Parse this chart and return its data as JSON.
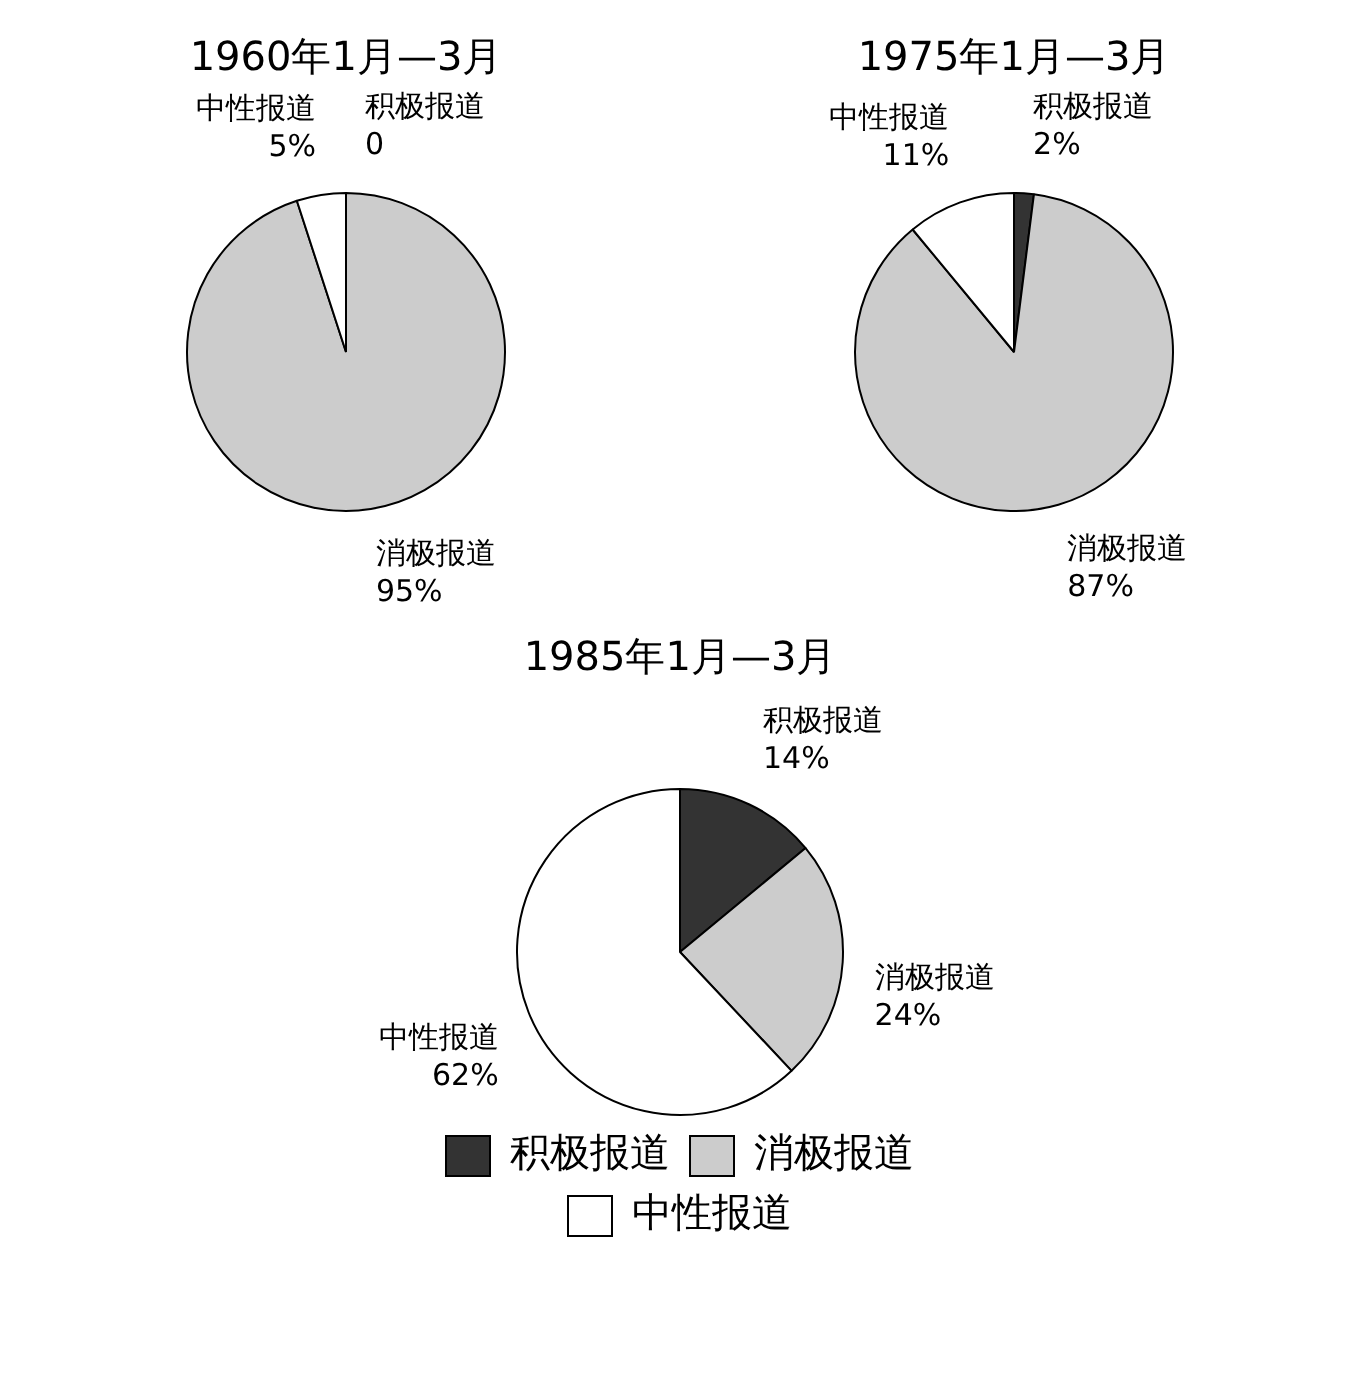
{
  "chart_data": [
    {
      "type": "pie",
      "title": "1960年1月—3月",
      "categories": [
        "积极报道",
        "消极报道",
        "中性报道"
      ],
      "values": [
        0,
        95,
        5
      ],
      "colors": [
        "#333333",
        "#cccccc",
        "#ffffff"
      ],
      "value_labels": [
        "0",
        "95%",
        "5%"
      ]
    },
    {
      "type": "pie",
      "title": "1975年1月—3月",
      "categories": [
        "积极报道",
        "消极报道",
        "中性报道"
      ],
      "values": [
        2,
        87,
        11
      ],
      "colors": [
        "#333333",
        "#cccccc",
        "#ffffff"
      ],
      "value_labels": [
        "2%",
        "87%",
        "11%"
      ]
    },
    {
      "type": "pie",
      "title": "1985年1月—3月",
      "categories": [
        "积极报道",
        "消极报道",
        "中性报道"
      ],
      "values": [
        14,
        24,
        62
      ],
      "colors": [
        "#333333",
        "#cccccc",
        "#ffffff"
      ],
      "value_labels": [
        "14%",
        "24%",
        "62%"
      ],
      "legend": "bottom"
    }
  ]
}
